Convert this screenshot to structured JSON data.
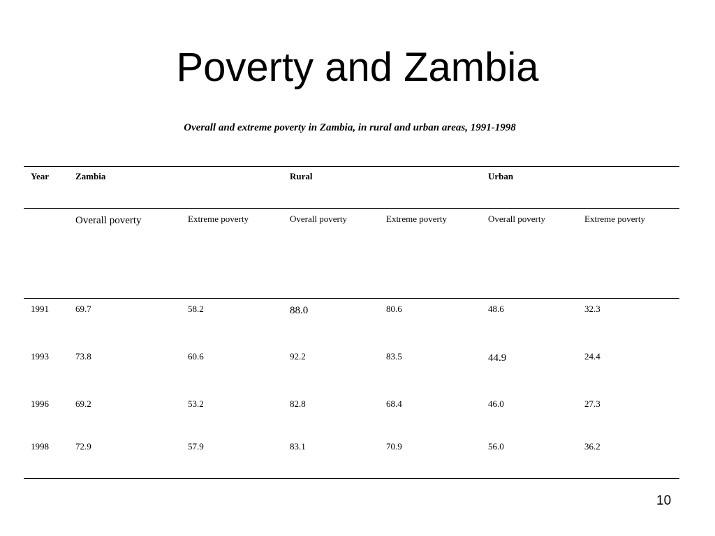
{
  "slide": {
    "title": "Poverty and Zambia",
    "caption": "Overall and extreme poverty in Zambia, in rural and urban areas, 1991-1998",
    "page_number": "10"
  },
  "table": {
    "group_headers": {
      "year": "Year",
      "zambia": "Zambia",
      "rural": "Rural",
      "urban": "Urban"
    },
    "sub_headers": {
      "zambia_overall": "Overall poverty",
      "zambia_extreme": "Extreme poverty",
      "rural_overall": "Overall poverty",
      "rural_extreme": "Extreme poverty",
      "urban_overall": "Overall poverty",
      "urban_extreme": "Extreme poverty"
    },
    "rows": [
      {
        "year": "1991",
        "zambia_overall": "69.7",
        "zambia_extreme": "58.2",
        "rural_overall": "88.0",
        "rural_extreme": "80.6",
        "urban_overall": "48.6",
        "urban_extreme": "32.3"
      },
      {
        "year": "1993",
        "zambia_overall": "73.8",
        "zambia_extreme": "60.6",
        "rural_overall": "92.2",
        "rural_extreme": "83.5",
        "urban_overall": "44.9",
        "urban_extreme": "24.4"
      },
      {
        "year": "1996",
        "zambia_overall": "69.2",
        "zambia_extreme": "53.2",
        "rural_overall": "82.8",
        "rural_extreme": "68.4",
        "urban_overall": "46.0",
        "urban_extreme": "27.3"
      },
      {
        "year": "1998",
        "zambia_overall": "72.9",
        "zambia_extreme": "57.9",
        "rural_overall": "83.1",
        "rural_extreme": "70.9",
        "urban_overall": "56.0",
        "urban_extreme": "36.2"
      }
    ]
  }
}
